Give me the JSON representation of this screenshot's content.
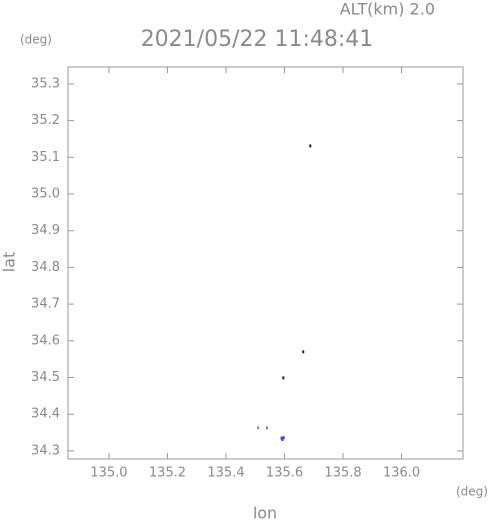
{
  "chart_data": {
    "type": "scatter",
    "header": "ALT(km) 2.0",
    "title": "2021/05/22 11:48:41",
    "y_unit": "(deg)",
    "x_unit": "(deg)",
    "xlabel": "lon",
    "ylabel": "lat",
    "x": [
      135.688,
      135.664,
      135.596,
      135.51,
      135.54,
      135.59,
      135.593,
      135.597
    ],
    "values": [
      35.131,
      34.57,
      34.499,
      34.363,
      34.363,
      34.335,
      34.331,
      34.336
    ],
    "colors": [
      "#222222",
      "#222222",
      "#222222",
      "#888888",
      "#888888",
      "#3040e0",
      "#3040e0",
      "#3040e0"
    ],
    "xlim": [
      134.86,
      136.21
    ],
    "ylim": [
      34.278,
      35.346
    ],
    "xticks": [
      {
        "value": 135.0,
        "label": "135.0"
      },
      135.2,
      135.4,
      135.6,
      135.8,
      {
        "value": 136.0,
        "label": "136.0"
      }
    ],
    "yticks": [
      35.3,
      35.2,
      35.1,
      {
        "value": 35.0,
        "label": "35.0"
      },
      34.9,
      34.8,
      34.7,
      34.6,
      34.5,
      34.4,
      34.3
    ]
  }
}
